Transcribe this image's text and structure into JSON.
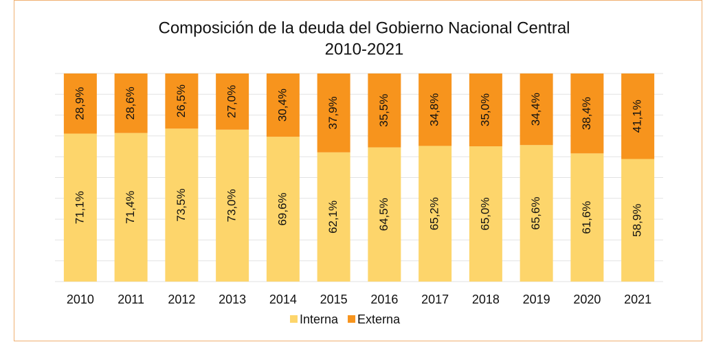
{
  "chart_data": {
    "type": "stacked_bar",
    "title": "Composición de la deuda del Gobierno Nacional Central",
    "subtitle": "2010-2021",
    "categories": [
      "2010",
      "2011",
      "2012",
      "2013",
      "2014",
      "2015",
      "2016",
      "2017",
      "2018",
      "2019",
      "2020",
      "2021"
    ],
    "series": [
      {
        "name": "Interna",
        "color": "#fdd56b",
        "values": [
          71.1,
          71.4,
          73.5,
          73.0,
          69.6,
          62.1,
          64.5,
          65.2,
          65.0,
          65.6,
          61.6,
          58.9
        ],
        "value_labels": [
          "71,1%",
          "71,4%",
          "73,5%",
          "73,0%",
          "69,6%",
          "62,1%",
          "64,5%",
          "65,2%",
          "65,0%",
          "65,6%",
          "61,6%",
          "58,9%"
        ]
      },
      {
        "name": "Externa",
        "color": "#f7941d",
        "values": [
          28.9,
          28.6,
          26.5,
          27.0,
          30.4,
          37.9,
          35.5,
          34.8,
          35.0,
          34.4,
          38.4,
          41.1
        ],
        "value_labels": [
          "28,9%",
          "28,6%",
          "26,5%",
          "27,0%",
          "30,4%",
          "37,9%",
          "35,5%",
          "34,8%",
          "35,0%",
          "34,4%",
          "38,4%",
          "41,1%"
        ]
      }
    ],
    "ylim": [
      0,
      100
    ],
    "yticks": [
      0,
      10,
      20,
      30,
      40,
      50,
      60,
      70,
      80,
      90,
      100
    ],
    "show_tick_labels": false,
    "grid": true,
    "legend": "bottom"
  }
}
